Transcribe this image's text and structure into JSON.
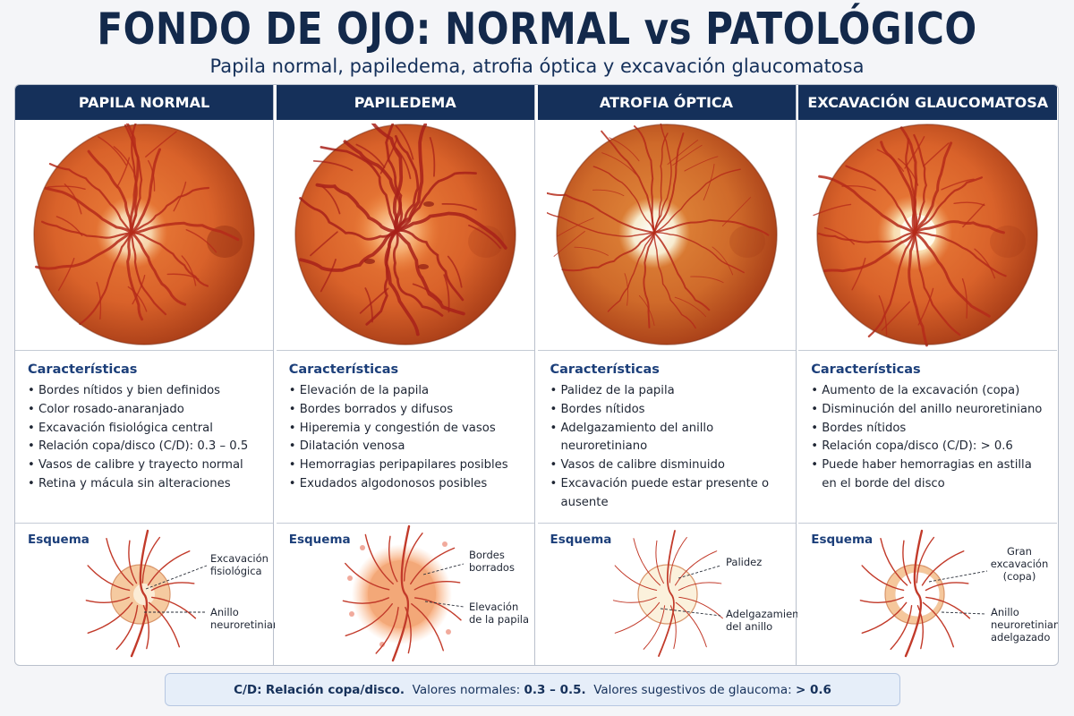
{
  "header": {
    "title": "FONDO DE OJO: NORMAL vs PATOLÓGICO",
    "subtitle": "Papila normal, papiledema, atrofia óptica y excavación glaucomatosa"
  },
  "section_labels": {
    "features": "Características",
    "scheme": "Esquema"
  },
  "columns": [
    {
      "heading": "PAPILA NORMAL",
      "features": [
        "Bordes nítidos y bien definidos",
        "Color rosado-anaranjado",
        "Excavación fisiológica central",
        "Relación copa/disco (C/D): 0.3 – 0.5",
        "Vasos de calibre y trayecto normal",
        "Retina y mácula sin alteraciones"
      ],
      "callouts": [
        [
          "Excavación",
          "fisiológica"
        ],
        [
          "Anillo",
          "neuroretiniano"
        ]
      ]
    },
    {
      "heading": "PAPILEDEMA",
      "features": [
        "Elevación de la papila",
        "Bordes borrados y difusos",
        "Hiperemia y congestión de vasos",
        "Dilatación venosa",
        "Hemorragias peripapilares posibles",
        "Exudados algodonosos posibles"
      ],
      "callouts": [
        [
          "Bordes",
          "borrados"
        ],
        [
          "Elevación",
          "de la papila"
        ]
      ]
    },
    {
      "heading": "ATROFIA ÓPTICA",
      "features": [
        "Palidez de la papila",
        "Bordes nítidos",
        "Adelgazamiento del anillo neuroretiniano",
        "Vasos de calibre disminuido",
        "Excavación puede estar presente o ausente"
      ],
      "callouts": [
        [
          "Palidez"
        ],
        [
          "Adelgazamiento",
          "del anillo"
        ]
      ]
    },
    {
      "heading": "EXCAVACIÓN GLAUCOMATOSA",
      "features": [
        "Aumento de la excavación (copa)",
        "Disminución del anillo neuroretiniano",
        "Bordes nítidos",
        "Relación copa/disco (C/D): > 0.6",
        "Puede haber hemorragias en astilla en el borde del disco"
      ],
      "callouts": [
        [
          "Gran",
          "excavación",
          "(copa)"
        ],
        [
          "Anillo",
          "neuroretiniano",
          "adelgazado"
        ]
      ]
    }
  ],
  "footer": {
    "term": "C/D:",
    "definition": "Relación copa/disco.",
    "normal_label": "Valores normales:",
    "normal_value": "0.3 – 0.5.",
    "glaucoma_label": "Valores sugestivos de glaucoma:",
    "glaucoma_value": "> 0.6"
  },
  "colors": {
    "navy": "#15305a",
    "retina": "#d9622a",
    "vessel": "#b52a1a",
    "disc_normal": "#f6d2a8",
    "disc_pale": "#f7ecd0"
  }
}
